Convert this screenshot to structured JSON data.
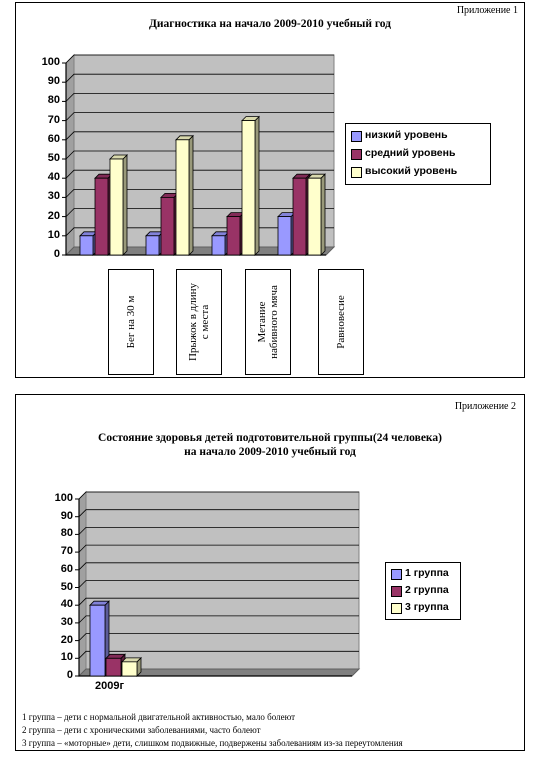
{
  "appendix1": "Приложение 1",
  "appendix2": "Приложение  2",
  "chart_data": [
    {
      "type": "bar",
      "title": "Диагностика на начало 2009-2010 учебный год",
      "categories": [
        "Бег на 30 м",
        "Прыжок в длину\nс места",
        "Метание\nнабивного мяча",
        "Равновесие"
      ],
      "series": [
        {
          "name": "низкий уровень",
          "values": [
            10,
            10,
            10,
            20
          ]
        },
        {
          "name": "средний уровень",
          "values": [
            40,
            30,
            20,
            40
          ]
        },
        {
          "name": "высокий уровень",
          "values": [
            50,
            60,
            70,
            40
          ]
        }
      ],
      "ylim": [
        0,
        100
      ],
      "yticks": [
        "0",
        "10",
        "20",
        "30",
        "40",
        "50",
        "60",
        "70",
        "80",
        "90",
        "100"
      ],
      "legend": "right",
      "grid": true
    },
    {
      "type": "bar",
      "title": "Состояние здоровья детей подготовительной группы(24 человека)\nна начало 2009-2010 учебный  год",
      "categories": [
        "2009г"
      ],
      "series": [
        {
          "name": "1 группа",
          "values": [
            40
          ]
        },
        {
          "name": "2 группа",
          "values": [
            10
          ]
        },
        {
          "name": "3 группа",
          "values": [
            8
          ]
        }
      ],
      "ylim": [
        0,
        100
      ],
      "yticks": [
        "0",
        "10",
        "20",
        "30",
        "40",
        "50",
        "60",
        "70",
        "80",
        "90",
        "100"
      ],
      "legend": "right",
      "grid": true
    }
  ],
  "colors": {
    "series1": "#9999ff",
    "series2": "#993366",
    "series3": "#ffffcc",
    "plot_bg": "#c0c0c0"
  },
  "notes": [
    "1 группа – дети с нормальной двигательной активностью, мало болеют",
    "2 группа – дети с хроническими заболеваниями, часто болеют",
    "3 группа – «моторные» дети, слишком подвижные, подвержены заболеваниям из-за переутомления"
  ]
}
